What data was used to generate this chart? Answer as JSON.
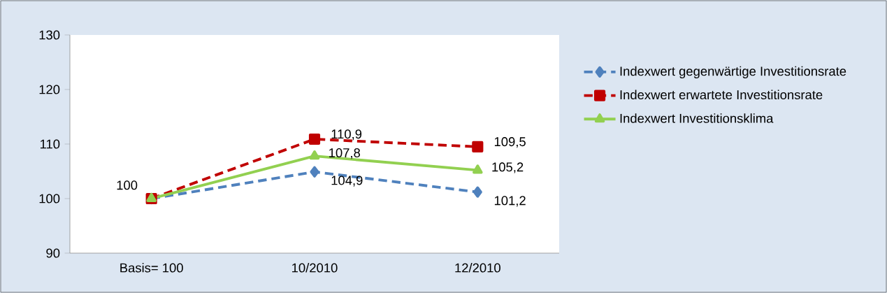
{
  "chart_data": {
    "type": "line",
    "categories": [
      "Basis= 100",
      "10/2010",
      "12/2010"
    ],
    "series": [
      {
        "name": "Indexwert gegenwärtige Investitionsrate",
        "color": "#4f81bd",
        "values": [
          100,
          104.9,
          101.2
        ],
        "marker": "diamond",
        "line_style": "dashed",
        "value_labels": [
          null,
          "104,9",
          "101,2"
        ]
      },
      {
        "name": "Indexwert erwartete Investitionsrate",
        "color": "#c00000",
        "values": [
          100,
          110.9,
          109.5
        ],
        "marker": "square",
        "line_style": "dashed",
        "value_labels": [
          null,
          "110,9",
          "109,5"
        ]
      },
      {
        "name": "Indexwert Investitionsklima",
        "color": "#92d050",
        "values": [
          100,
          107.8,
          105.2
        ],
        "marker": "triangle",
        "line_style": "solid",
        "value_labels": [
          "100",
          "107,8",
          "105,2"
        ]
      }
    ],
    "ylim": [
      90,
      130
    ],
    "yticks": [
      90,
      100,
      110,
      120,
      130
    ],
    "grid": false,
    "legend": "right"
  }
}
